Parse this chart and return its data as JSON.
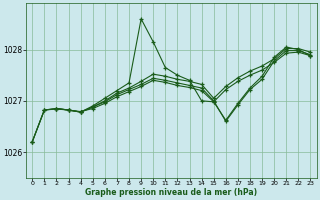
{
  "title": "Graphe pression niveau de la mer (hPa)",
  "background_color": "#cce8ec",
  "grid_color": "#88bb99",
  "line_color": "#1a5c1a",
  "xlim": [
    -0.5,
    23.5
  ],
  "ylim": [
    1025.5,
    1028.9
  ],
  "yticks": [
    1026,
    1027,
    1028
  ],
  "xticks": [
    0,
    1,
    2,
    3,
    4,
    5,
    6,
    7,
    8,
    9,
    10,
    11,
    12,
    13,
    14,
    15,
    16,
    17,
    18,
    19,
    20,
    21,
    22,
    23
  ],
  "series": [
    {
      "x": [
        0,
        1,
        2,
        3,
        4,
        5,
        6,
        7,
        8,
        9,
        10,
        11,
        12,
        13,
        14,
        15,
        16,
        17,
        18,
        19,
        20,
        21,
        22,
        23
      ],
      "y": [
        1026.2,
        1026.82,
        1026.85,
        1026.82,
        1026.78,
        1026.9,
        1027.05,
        1027.2,
        1027.35,
        1028.6,
        1028.15,
        1027.65,
        1027.5,
        1027.4,
        1027.0,
        1026.98,
        1026.62,
        1026.95,
        1027.25,
        1027.48,
        1027.85,
        1028.05,
        1028.0,
        1027.88
      ]
    },
    {
      "x": [
        0,
        1,
        2,
        3,
        4,
        5,
        6,
        7,
        8,
        9,
        10,
        11,
        12,
        13,
        14,
        15,
        16,
        17,
        18,
        19,
        20,
        21,
        22,
        23
      ],
      "y": [
        1026.2,
        1026.82,
        1026.85,
        1026.82,
        1026.78,
        1026.88,
        1027.0,
        1027.15,
        1027.25,
        1027.38,
        1027.52,
        1027.48,
        1027.42,
        1027.38,
        1027.32,
        1027.05,
        1027.28,
        1027.45,
        1027.58,
        1027.68,
        1027.82,
        1028.02,
        1028.02,
        1027.95
      ]
    },
    {
      "x": [
        0,
        1,
        2,
        3,
        4,
        5,
        6,
        7,
        8,
        9,
        10,
        11,
        12,
        13,
        14,
        15,
        16,
        17,
        18,
        19,
        20,
        21,
        22,
        23
      ],
      "y": [
        1026.2,
        1026.82,
        1026.84,
        1026.82,
        1026.79,
        1026.85,
        1026.95,
        1027.08,
        1027.18,
        1027.28,
        1027.4,
        1027.36,
        1027.3,
        1027.26,
        1027.2,
        1026.98,
        1027.22,
        1027.38,
        1027.5,
        1027.6,
        1027.75,
        1027.93,
        1027.95,
        1027.88
      ]
    },
    {
      "x": [
        2,
        3,
        4,
        5,
        6,
        7,
        8,
        9,
        10,
        11,
        12,
        13,
        14,
        15,
        16,
        17,
        18,
        19,
        20,
        21,
        22,
        23
      ],
      "y": [
        1026.85,
        1026.82,
        1026.78,
        1026.88,
        1026.98,
        1027.12,
        1027.22,
        1027.32,
        1027.44,
        1027.4,
        1027.35,
        1027.3,
        1027.25,
        1027.0,
        1026.6,
        1026.92,
        1027.22,
        1027.42,
        1027.78,
        1027.98,
        1027.98,
        1027.9
      ]
    }
  ]
}
